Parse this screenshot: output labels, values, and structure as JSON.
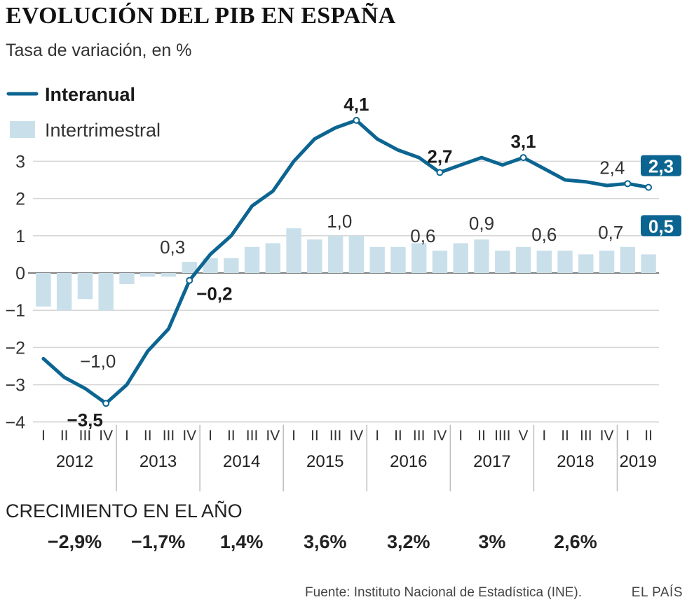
{
  "title": "EVOLUCIÓN DEL PIB EN ESPAÑA",
  "subtitle": "Tasa de variación, en %",
  "colors": {
    "line": "#0c6591",
    "bar": "#c9e0eb",
    "grid": "#d6d6d6",
    "text": "#1a1a1a"
  },
  "chart_data": {
    "type": "bar+line",
    "ylim": [
      -4,
      4.4
    ],
    "yticks": [
      -4,
      -3,
      -2,
      -1,
      0,
      1,
      2,
      3
    ],
    "ytick_labels": [
      "−4",
      "−3",
      "−2",
      "−1",
      "0",
      "1",
      "2",
      "3"
    ],
    "quarter_labels": [
      "I",
      "II",
      "III",
      "IV",
      "I",
      "II",
      "III",
      "IV",
      "I",
      "II",
      "III",
      "IV",
      "I",
      "II",
      "III",
      "IV",
      "I",
      "II",
      "III",
      "IV",
      "I",
      "II",
      "IIII",
      "V",
      "I",
      "II",
      "III",
      "IV",
      "I",
      "II"
    ],
    "years": [
      "2012",
      "2013",
      "2014",
      "2015",
      "2016",
      "2017",
      "2018",
      "2019"
    ],
    "series": [
      {
        "name": "Interanual",
        "kind": "line",
        "values": [
          -2.3,
          -2.8,
          -3.1,
          -3.5,
          -3.0,
          -2.1,
          -1.5,
          -0.2,
          0.5,
          1.0,
          1.8,
          2.2,
          3.0,
          3.6,
          3.9,
          4.1,
          3.6,
          3.3,
          3.1,
          2.7,
          2.9,
          3.1,
          2.9,
          3.1,
          2.8,
          2.5,
          2.45,
          2.35,
          2.4,
          2.3
        ]
      },
      {
        "name": "Intertrimestral",
        "kind": "bar",
        "values": [
          -0.9,
          -1.0,
          -0.7,
          -1.0,
          -0.3,
          -0.1,
          -0.1,
          0.3,
          0.4,
          0.4,
          0.7,
          0.8,
          1.2,
          0.9,
          1.0,
          1.0,
          0.7,
          0.7,
          0.8,
          0.6,
          0.8,
          0.9,
          0.6,
          0.7,
          0.6,
          0.6,
          0.5,
          0.6,
          0.7,
          0.5
        ]
      }
    ],
    "annotations": [
      {
        "series": "Interanual",
        "index": 3,
        "text": "−3,5",
        "pos": "below",
        "bold": true
      },
      {
        "series": "Interanual",
        "index": 7,
        "text": "−0,2",
        "pos": "right",
        "bold": true
      },
      {
        "series": "Interanual",
        "index": 15,
        "text": "4,1",
        "pos": "above",
        "bold": true
      },
      {
        "series": "Interanual",
        "index": 19,
        "text": "2,7",
        "pos": "above",
        "bold": true
      },
      {
        "series": "Interanual",
        "index": 23,
        "text": "3,1",
        "pos": "above",
        "bold": true
      },
      {
        "series": "Interanual",
        "index": 28,
        "text": "2,4",
        "pos": "above-left",
        "bold": false
      },
      {
        "series": "Interanual",
        "index": 29,
        "text": "2,3",
        "pos": "badge",
        "bold": true
      },
      {
        "series": "Intertrimestral",
        "index": 1,
        "text": "−1,0",
        "pos": "below-right",
        "bold": false
      },
      {
        "series": "Intertrimestral",
        "index": 7,
        "text": "0,3",
        "pos": "above-left",
        "bold": false
      },
      {
        "series": "Intertrimestral",
        "index": 15,
        "text": "1,0",
        "pos": "above-left",
        "bold": false
      },
      {
        "series": "Intertrimestral",
        "index": 19,
        "text": "0,6",
        "pos": "above-left",
        "bold": false
      },
      {
        "series": "Intertrimestral",
        "index": 21,
        "text": "0,9",
        "pos": "above",
        "bold": false
      },
      {
        "series": "Intertrimestral",
        "index": 24,
        "text": "0,6",
        "pos": "above",
        "bold": false
      },
      {
        "series": "Intertrimestral",
        "index": 28,
        "text": "0,7",
        "pos": "above-left",
        "bold": false
      },
      {
        "series": "Intertrimestral",
        "index": 29,
        "text": "0,5",
        "pos": "badge",
        "bold": true
      }
    ]
  },
  "growth": {
    "heading": "CRECIMIENTO EN EL AÑO",
    "values": [
      "−2,9%",
      "−1,7%",
      "1,4%",
      "3,6%",
      "3,2%",
      "3%",
      "2,6%"
    ]
  },
  "source": "Fuente: Instituto Nacional de Estadística (INE).",
  "brand": "EL PAÍS"
}
